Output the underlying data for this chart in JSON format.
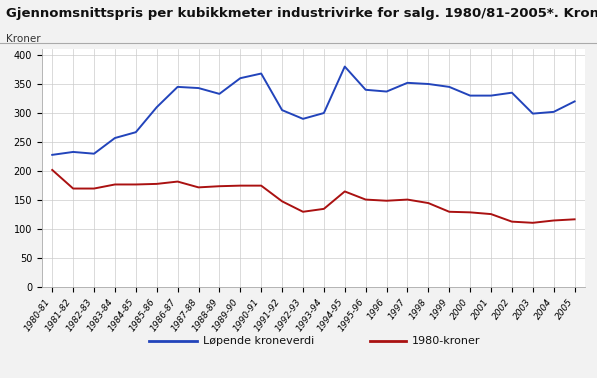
{
  "title": "Gjennomsnittspris per kubikkmeter industrivirke for salg. 1980/81-2005*. Kroner",
  "ylabel": "Kroner",
  "labels": [
    "1980-81",
    "1981-82",
    "1982-83",
    "1983-84",
    "1984-85",
    "1985-86",
    "1986-87",
    "1987-88",
    "1988-89",
    "1989-90",
    "1990-91",
    "1991-92",
    "1992-93",
    "1993-94",
    "1994-95",
    "1995-96",
    "1996",
    "1997",
    "1998",
    "1999",
    "2000",
    "2001",
    "2002",
    "2003",
    "2004",
    "2005"
  ],
  "lopende": [
    228,
    233,
    230,
    257,
    267,
    310,
    345,
    343,
    333,
    360,
    368,
    305,
    290,
    300,
    380,
    340,
    337,
    352,
    350,
    345,
    330,
    330,
    335,
    299,
    302,
    320
  ],
  "kroner1980": [
    202,
    170,
    170,
    177,
    177,
    178,
    182,
    172,
    174,
    175,
    175,
    148,
    130,
    135,
    165,
    151,
    149,
    151,
    145,
    130,
    129,
    126,
    113,
    111,
    115,
    117
  ],
  "line_color_lopende": "#2244bb",
  "line_color_1980": "#aa1111",
  "background_color": "#f2f2f2",
  "plot_bg_color": "#ffffff",
  "ylim": [
    0,
    410
  ],
  "yticks": [
    0,
    50,
    100,
    150,
    200,
    250,
    300,
    350,
    400
  ],
  "legend_lopende": "Løpende kroneverdi",
  "legend_1980": "1980-kroner",
  "title_fontsize": 9.5,
  "tick_fontsize": 7,
  "legend_fontsize": 8
}
